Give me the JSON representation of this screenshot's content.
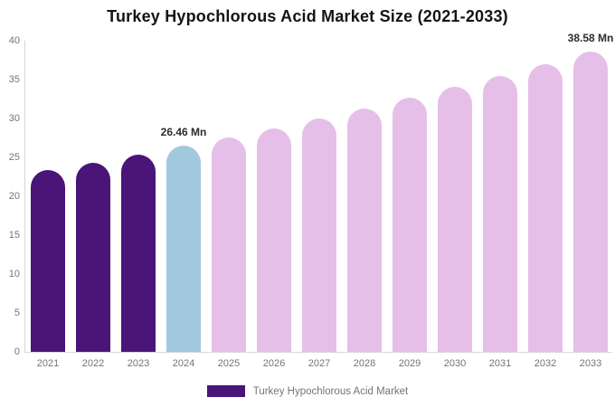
{
  "chart_data": {
    "type": "bar",
    "title": "Turkey Hypochlorous Acid Market Size (2021-2033)",
    "xlabel": "",
    "ylabel": "",
    "unit": "Mn",
    "categories": [
      "2021",
      "2022",
      "2023",
      "2024",
      "2025",
      "2026",
      "2027",
      "2028",
      "2029",
      "2030",
      "2031",
      "2032",
      "2033"
    ],
    "values": [
      23.33,
      24.33,
      25.37,
      26.46,
      27.59,
      28.77,
      30.0,
      31.29,
      32.63,
      34.02,
      35.48,
      37.0,
      38.58
    ],
    "point_colors": [
      "#4a1478",
      "#4a1478",
      "#4a1478",
      "#a2c8de",
      "#e6bfe9",
      "#e6bfe9",
      "#e6bfe9",
      "#e6bfe9",
      "#e6bfe9",
      "#e6bfe9",
      "#e6bfe9",
      "#e6bfe9",
      "#e6bfe9"
    ],
    "data_labels": [
      {
        "index": 3,
        "text": "26.46 Mn"
      },
      {
        "index": 12,
        "text": "38.58 Mn"
      }
    ],
    "ylim": [
      0,
      40
    ],
    "y_ticks": [
      0,
      5,
      10,
      15,
      20,
      25,
      30,
      35,
      40
    ],
    "grid": false,
    "legend": {
      "position": "bottom",
      "label": "Turkey Hypochlorous Acid Market",
      "swatch_color": "#4a1478"
    }
  },
  "colors": {
    "historical_bar": "#4a1478",
    "current_year_bar": "#a2c8de",
    "forecast_bar": "#e6bfe9",
    "axis_line": "#d6d6d6",
    "tick_label": "#757575",
    "data_label": "#2d2d2d",
    "title": "#141414",
    "background": "#ffffff"
  }
}
